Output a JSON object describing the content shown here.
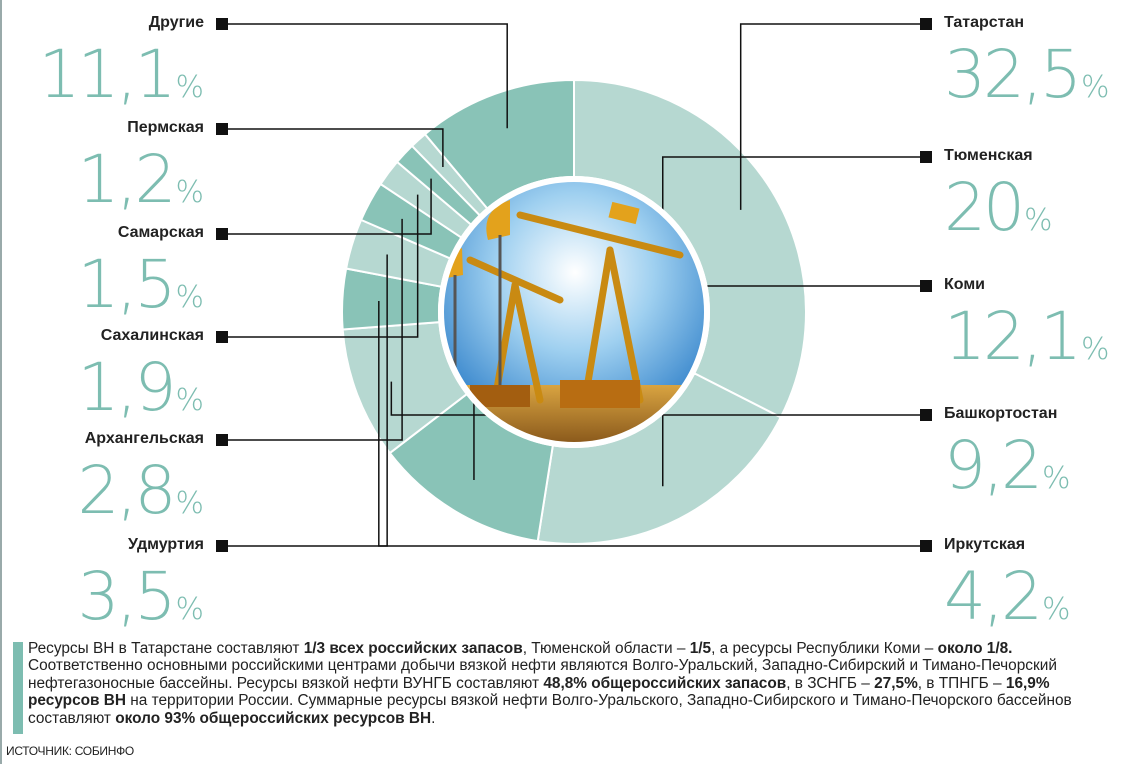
{
  "chart_data": {
    "type": "pie",
    "variant": "donut",
    "slices": [
      {
        "name": "Татарстан",
        "value": 32.5,
        "value_label": "32,5",
        "color": "#b6d8d1"
      },
      {
        "name": "Тюменская",
        "value": 20,
        "value_label": "20",
        "color": "#b6d8d1"
      },
      {
        "name": "Коми",
        "value": 12.1,
        "value_label": "12,1",
        "color": "#89c3b7"
      },
      {
        "name": "Башкортостан",
        "value": 9.2,
        "value_label": "9,2",
        "color": "#b6d8d1"
      },
      {
        "name": "Иркутская",
        "value": 4.2,
        "value_label": "4,2",
        "color": "#89c3b7"
      },
      {
        "name": "Удмуртия",
        "value": 3.5,
        "value_label": "3,5",
        "color": "#b6d8d1"
      },
      {
        "name": "Архангельская",
        "value": 2.8,
        "value_label": "2,8",
        "color": "#89c3b7"
      },
      {
        "name": "Сахалинская",
        "value": 1.9,
        "value_label": "1,9",
        "color": "#b6d8d1"
      },
      {
        "name": "Самарская",
        "value": 1.5,
        "value_label": "1,5",
        "color": "#89c3b7"
      },
      {
        "name": "Пермская",
        "value": 1.2,
        "value_label": "1,2",
        "color": "#b6d8d1"
      },
      {
        "name": "Другие",
        "value": 11.1,
        "value_label": "11,1",
        "color": "#89c3b7"
      }
    ],
    "unit": "%",
    "legend_placement": "around"
  },
  "note": {
    "parts": [
      {
        "t": "Ресурсы ВН в Татарстане составляют ",
        "b": false
      },
      {
        "t": "1/3 всех российских запасов",
        "b": true
      },
      {
        "t": ", Тюменской области – ",
        "b": false
      },
      {
        "t": "1/5",
        "b": true
      },
      {
        "t": ", а ресурсы Республики Коми – ",
        "b": false
      },
      {
        "t": "около 1/8.",
        "b": true
      },
      {
        "t": " Соответственно основными российскими центрами  добычи вязкой нефти являются Волго-Уральский, Западно-Сибирский и Тимано-Печорский нефтегазоносные бассейны. Ресурсы вязкой нефти ВУНГБ составляют ",
        "b": false
      },
      {
        "t": "48,8% общероссийских запасов",
        "b": true
      },
      {
        "t": ", в ЗСНГБ – ",
        "b": false
      },
      {
        "t": "27,5%",
        "b": true
      },
      {
        "t": ", в ТПНГБ – ",
        "b": false
      },
      {
        "t": "16,9% ресурсов ВН",
        "b": true
      },
      {
        "t": " на территории России. Суммарные ресурсы вязкой нефти Волго-Уральского, Западно-Сибирского и Тимано-Печорского бассейнов составляют ",
        "b": false
      },
      {
        "t": "около 93% общероссийских ресурсов ВН",
        "b": true
      },
      {
        "t": ".",
        "b": false
      }
    ]
  },
  "source": "ИСТОЧНИК: СОБИНФО",
  "colors": {
    "accent": "#7dbdb1",
    "light": "#b6d8d1",
    "mid": "#89c3b7"
  }
}
